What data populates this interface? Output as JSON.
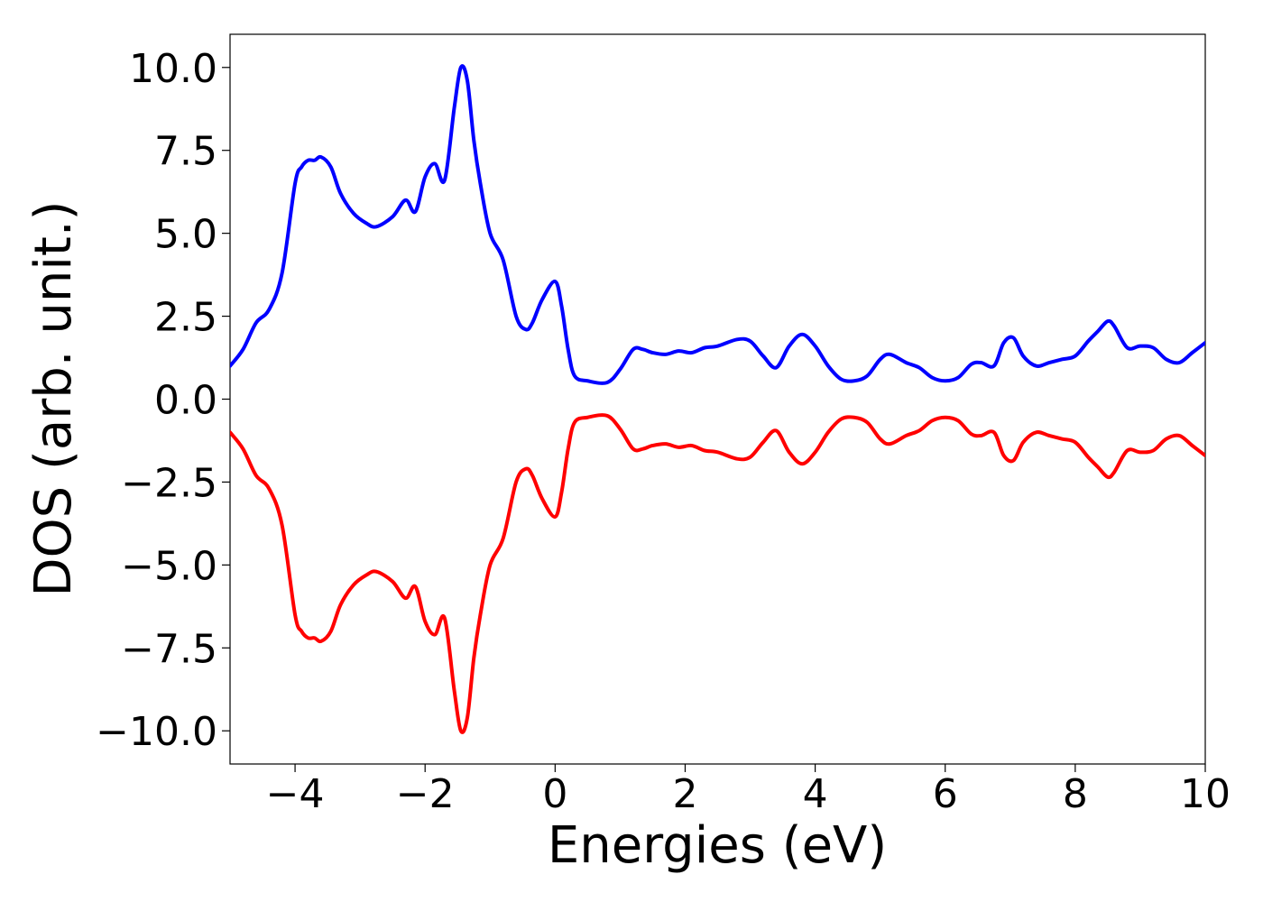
{
  "chart_data": {
    "type": "line",
    "title": "",
    "xlabel": "Energies (eV)",
    "ylabel": "DOS (arb. unit.)",
    "xlim": [
      -5,
      10
    ],
    "ylim": [
      -11,
      11
    ],
    "grid": false,
    "legend": "none",
    "x_ticks": [
      -4,
      -2,
      0,
      2,
      4,
      6,
      8,
      10
    ],
    "x_tick_labels": [
      "−4",
      "−2",
      "0",
      "2",
      "4",
      "6",
      "8",
      "10"
    ],
    "y_ticks": [
      10.0,
      7.5,
      5.0,
      2.5,
      0.0,
      -2.5,
      -5.0,
      -7.5,
      -10.0
    ],
    "y_tick_labels": [
      "10.0",
      "7.5",
      "5.0",
      "2.5",
      "0.0",
      "−2.5",
      "−5.0",
      "−7.5",
      "−10.0"
    ],
    "series": [
      {
        "color": "#0000ff",
        "x": [
          -5.0,
          -4.8,
          -4.6,
          -4.4,
          -4.2,
          -4.0,
          -3.9,
          -3.8,
          -3.7,
          -3.6,
          -3.45,
          -3.3,
          -3.1,
          -2.9,
          -2.75,
          -2.5,
          -2.3,
          -2.15,
          -2.0,
          -1.85,
          -1.7,
          -1.55,
          -1.45,
          -1.35,
          -1.25,
          -1.15,
          -1.0,
          -0.8,
          -0.6,
          -0.45,
          -0.35,
          -0.2,
          0.0,
          0.1,
          0.2,
          0.3,
          0.5,
          0.8,
          1.0,
          1.2,
          1.35,
          1.5,
          1.7,
          1.9,
          2.1,
          2.3,
          2.5,
          2.8,
          3.0,
          3.2,
          3.4,
          3.6,
          3.8,
          4.0,
          4.2,
          4.4,
          4.6,
          4.8,
          5.0,
          5.15,
          5.4,
          5.6,
          5.8,
          6.0,
          6.2,
          6.4,
          6.55,
          6.75,
          6.9,
          7.05,
          7.2,
          7.4,
          7.6,
          7.8,
          8.0,
          8.2,
          8.35,
          8.5,
          8.6,
          8.8,
          9.0,
          9.2,
          9.4,
          9.6,
          9.8,
          10.0
        ],
        "y": [
          1.0,
          1.5,
          2.3,
          2.7,
          3.8,
          6.5,
          7.0,
          7.2,
          7.2,
          7.3,
          7.0,
          6.2,
          5.6,
          5.3,
          5.2,
          5.5,
          6.0,
          5.65,
          6.7,
          7.1,
          6.6,
          8.8,
          10.0,
          9.6,
          7.8,
          6.5,
          5.0,
          4.2,
          2.5,
          2.1,
          2.3,
          3.0,
          3.55,
          2.8,
          1.5,
          0.7,
          0.55,
          0.5,
          0.9,
          1.5,
          1.5,
          1.4,
          1.35,
          1.45,
          1.4,
          1.55,
          1.6,
          1.8,
          1.75,
          1.3,
          0.95,
          1.6,
          1.95,
          1.6,
          1.0,
          0.6,
          0.55,
          0.7,
          1.2,
          1.35,
          1.1,
          0.95,
          0.65,
          0.55,
          0.65,
          1.05,
          1.1,
          1.0,
          1.7,
          1.85,
          1.3,
          1.0,
          1.1,
          1.2,
          1.3,
          1.75,
          2.05,
          2.35,
          2.2,
          1.55,
          1.6,
          1.55,
          1.2,
          1.1,
          1.4,
          1.7
        ]
      },
      {
        "color": "#ff0000",
        "x": [
          -5.0,
          -4.8,
          -4.6,
          -4.4,
          -4.2,
          -4.0,
          -3.9,
          -3.8,
          -3.7,
          -3.6,
          -3.45,
          -3.3,
          -3.1,
          -2.9,
          -2.75,
          -2.5,
          -2.3,
          -2.15,
          -2.0,
          -1.85,
          -1.7,
          -1.55,
          -1.45,
          -1.35,
          -1.25,
          -1.15,
          -1.0,
          -0.8,
          -0.6,
          -0.45,
          -0.35,
          -0.2,
          0.0,
          0.1,
          0.2,
          0.3,
          0.5,
          0.8,
          1.0,
          1.2,
          1.35,
          1.5,
          1.7,
          1.9,
          2.1,
          2.3,
          2.5,
          2.8,
          3.0,
          3.2,
          3.4,
          3.6,
          3.8,
          4.0,
          4.2,
          4.4,
          4.6,
          4.8,
          5.0,
          5.15,
          5.4,
          5.6,
          5.8,
          6.0,
          6.2,
          6.4,
          6.55,
          6.75,
          6.9,
          7.05,
          7.2,
          7.4,
          7.6,
          7.8,
          8.0,
          8.2,
          8.35,
          8.5,
          8.6,
          8.8,
          9.0,
          9.2,
          9.4,
          9.6,
          9.8,
          10.0
        ],
        "y": [
          -1.0,
          -1.5,
          -2.3,
          -2.7,
          -3.8,
          -6.5,
          -7.0,
          -7.2,
          -7.2,
          -7.3,
          -7.0,
          -6.2,
          -5.6,
          -5.3,
          -5.2,
          -5.5,
          -6.0,
          -5.65,
          -6.7,
          -7.1,
          -6.6,
          -8.8,
          -10.0,
          -9.6,
          -7.8,
          -6.5,
          -5.0,
          -4.2,
          -2.5,
          -2.1,
          -2.3,
          -3.0,
          -3.55,
          -2.8,
          -1.5,
          -0.7,
          -0.55,
          -0.5,
          -0.9,
          -1.5,
          -1.5,
          -1.4,
          -1.35,
          -1.45,
          -1.4,
          -1.55,
          -1.6,
          -1.8,
          -1.75,
          -1.3,
          -0.95,
          -1.6,
          -1.95,
          -1.6,
          -1.0,
          -0.6,
          -0.55,
          -0.7,
          -1.2,
          -1.35,
          -1.1,
          -0.95,
          -0.65,
          -0.55,
          -0.65,
          -1.05,
          -1.1,
          -1.0,
          -1.7,
          -1.85,
          -1.3,
          -1.0,
          -1.1,
          -1.2,
          -1.3,
          -1.75,
          -2.05,
          -2.35,
          -2.2,
          -1.55,
          -1.6,
          -1.55,
          -1.2,
          -1.1,
          -1.4,
          -1.7
        ]
      }
    ]
  }
}
